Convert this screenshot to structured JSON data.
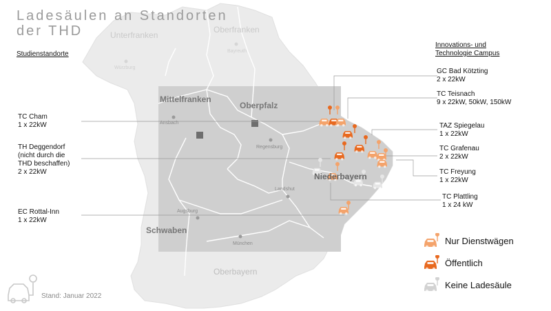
{
  "title": {
    "line1": "Ladesäulen an Standorten",
    "line2": "der THD"
  },
  "headers": {
    "left": "Studienstandorte",
    "right_line1": "Innovations- und",
    "right_line2": "Technologie Campus"
  },
  "left_labels": [
    {
      "lines": [
        "TC Cham",
        "1 x 22kW"
      ]
    },
    {
      "lines": [
        "TH Deggendorf",
        "(nicht durch die",
        "THD beschaffen)",
        "2 x 22kW"
      ]
    },
    {
      "lines": [
        "EC Rottal-Inn",
        "1 x 22kW"
      ]
    }
  ],
  "right_labels": [
    {
      "lines": [
        "GC Bad Kötzting",
        "2 x 22kW"
      ]
    },
    {
      "lines": [
        "TC Teisnach",
        "9 x 22kW, 50kW, 150kW"
      ]
    },
    {
      "lines": [
        "TAZ Spiegelau",
        "1 x 22kW"
      ]
    },
    {
      "lines": [
        "TC Grafenau",
        "2 x 22kW"
      ]
    },
    {
      "lines": [
        "TC Freyung",
        "1 x 22kW"
      ]
    },
    {
      "lines": [
        "TC Plattling",
        "1 x 24 kW"
      ]
    }
  ],
  "regions": {
    "unterfranken": "Unterfranken",
    "oberfranken": "Oberfranken",
    "mittelfranken": "Mittelfranken",
    "oberpfalz": "Oberpfalz",
    "niederbayern": "Niederbayern",
    "schwaben": "Schwaben",
    "oberbayern": "Oberbayern"
  },
  "cities": {
    "wurzburg": "Würzburg",
    "bayreuth": "Bayreuth",
    "ansbach": "Ansbach",
    "regensburg": "Regensburg",
    "landshut": "Landshut",
    "augsburg": "Augsburg",
    "munchen": "München"
  },
  "legend": {
    "dienst": "Nur Dienstwägen",
    "offentlich": "Öffentlich",
    "keine": "Keine Ladesäule"
  },
  "footer": {
    "stand": "Stand: Januar 2022"
  },
  "colors": {
    "orange_light": "#f4a36b",
    "orange_dark": "#e8691f",
    "gray_car": "#c8c8c8",
    "map_light": "#ebebeb",
    "map_dark": "#cfcfcf"
  }
}
